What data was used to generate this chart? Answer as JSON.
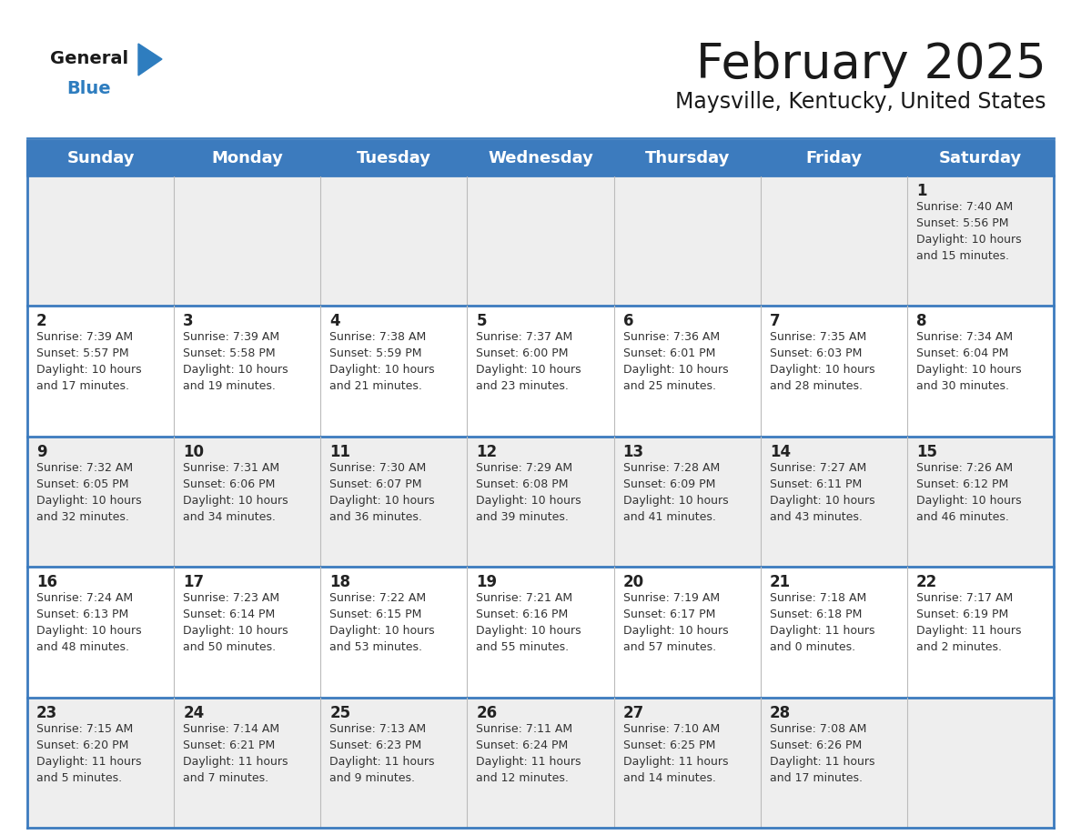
{
  "title": "February 2025",
  "subtitle": "Maysville, Kentucky, United States",
  "days_of_week": [
    "Sunday",
    "Monday",
    "Tuesday",
    "Wednesday",
    "Thursday",
    "Friday",
    "Saturday"
  ],
  "header_bg": "#3C7BBE",
  "header_text": "#FFFFFF",
  "row_bg": [
    "#EEEEEE",
    "#FFFFFF",
    "#EEEEEE",
    "#FFFFFF",
    "#EEEEEE"
  ],
  "border_color": "#3C7BBE",
  "title_color": "#1a1a1a",
  "subtitle_color": "#1a1a1a",
  "day_num_color": "#222222",
  "cell_text_color": "#333333",
  "logo_general_color": "#1a1a1a",
  "logo_blue_color": "#2E7DBF",
  "calendar_data": [
    [
      null,
      null,
      null,
      null,
      null,
      null,
      {
        "day": "1",
        "sunrise": "7:40 AM",
        "sunset": "5:56 PM",
        "daylight": "10 hours\nand 15 minutes."
      }
    ],
    [
      {
        "day": "2",
        "sunrise": "7:39 AM",
        "sunset": "5:57 PM",
        "daylight": "10 hours\nand 17 minutes."
      },
      {
        "day": "3",
        "sunrise": "7:39 AM",
        "sunset": "5:58 PM",
        "daylight": "10 hours\nand 19 minutes."
      },
      {
        "day": "4",
        "sunrise": "7:38 AM",
        "sunset": "5:59 PM",
        "daylight": "10 hours\nand 21 minutes."
      },
      {
        "day": "5",
        "sunrise": "7:37 AM",
        "sunset": "6:00 PM",
        "daylight": "10 hours\nand 23 minutes."
      },
      {
        "day": "6",
        "sunrise": "7:36 AM",
        "sunset": "6:01 PM",
        "daylight": "10 hours\nand 25 minutes."
      },
      {
        "day": "7",
        "sunrise": "7:35 AM",
        "sunset": "6:03 PM",
        "daylight": "10 hours\nand 28 minutes."
      },
      {
        "day": "8",
        "sunrise": "7:34 AM",
        "sunset": "6:04 PM",
        "daylight": "10 hours\nand 30 minutes."
      }
    ],
    [
      {
        "day": "9",
        "sunrise": "7:32 AM",
        "sunset": "6:05 PM",
        "daylight": "10 hours\nand 32 minutes."
      },
      {
        "day": "10",
        "sunrise": "7:31 AM",
        "sunset": "6:06 PM",
        "daylight": "10 hours\nand 34 minutes."
      },
      {
        "day": "11",
        "sunrise": "7:30 AM",
        "sunset": "6:07 PM",
        "daylight": "10 hours\nand 36 minutes."
      },
      {
        "day": "12",
        "sunrise": "7:29 AM",
        "sunset": "6:08 PM",
        "daylight": "10 hours\nand 39 minutes."
      },
      {
        "day": "13",
        "sunrise": "7:28 AM",
        "sunset": "6:09 PM",
        "daylight": "10 hours\nand 41 minutes."
      },
      {
        "day": "14",
        "sunrise": "7:27 AM",
        "sunset": "6:11 PM",
        "daylight": "10 hours\nand 43 minutes."
      },
      {
        "day": "15",
        "sunrise": "7:26 AM",
        "sunset": "6:12 PM",
        "daylight": "10 hours\nand 46 minutes."
      }
    ],
    [
      {
        "day": "16",
        "sunrise": "7:24 AM",
        "sunset": "6:13 PM",
        "daylight": "10 hours\nand 48 minutes."
      },
      {
        "day": "17",
        "sunrise": "7:23 AM",
        "sunset": "6:14 PM",
        "daylight": "10 hours\nand 50 minutes."
      },
      {
        "day": "18",
        "sunrise": "7:22 AM",
        "sunset": "6:15 PM",
        "daylight": "10 hours\nand 53 minutes."
      },
      {
        "day": "19",
        "sunrise": "7:21 AM",
        "sunset": "6:16 PM",
        "daylight": "10 hours\nand 55 minutes."
      },
      {
        "day": "20",
        "sunrise": "7:19 AM",
        "sunset": "6:17 PM",
        "daylight": "10 hours\nand 57 minutes."
      },
      {
        "day": "21",
        "sunrise": "7:18 AM",
        "sunset": "6:18 PM",
        "daylight": "11 hours\nand 0 minutes."
      },
      {
        "day": "22",
        "sunrise": "7:17 AM",
        "sunset": "6:19 PM",
        "daylight": "11 hours\nand 2 minutes."
      }
    ],
    [
      {
        "day": "23",
        "sunrise": "7:15 AM",
        "sunset": "6:20 PM",
        "daylight": "11 hours\nand 5 minutes."
      },
      {
        "day": "24",
        "sunrise": "7:14 AM",
        "sunset": "6:21 PM",
        "daylight": "11 hours\nand 7 minutes."
      },
      {
        "day": "25",
        "sunrise": "7:13 AM",
        "sunset": "6:23 PM",
        "daylight": "11 hours\nand 9 minutes."
      },
      {
        "day": "26",
        "sunrise": "7:11 AM",
        "sunset": "6:24 PM",
        "daylight": "11 hours\nand 12 minutes."
      },
      {
        "day": "27",
        "sunrise": "7:10 AM",
        "sunset": "6:25 PM",
        "daylight": "11 hours\nand 14 minutes."
      },
      {
        "day": "28",
        "sunrise": "7:08 AM",
        "sunset": "6:26 PM",
        "daylight": "11 hours\nand 17 minutes."
      },
      null
    ]
  ]
}
